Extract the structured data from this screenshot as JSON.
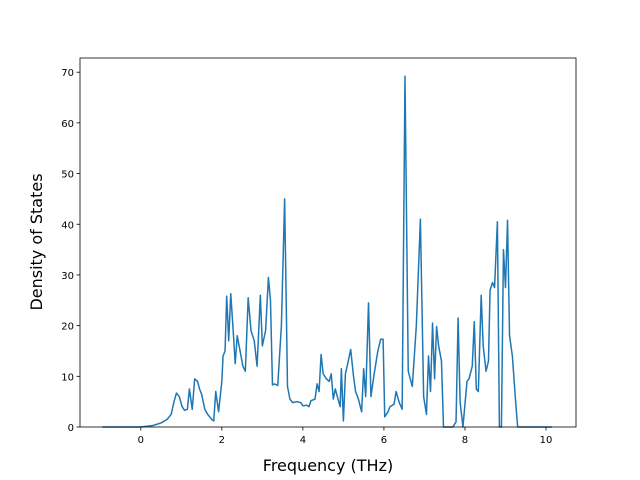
{
  "chart_data": {
    "type": "line",
    "xlabel": "Frequency (THz)",
    "ylabel": "Density of States",
    "x": [
      -0.95,
      0,
      0.3,
      0.5,
      0.65,
      0.75,
      0.82,
      0.88,
      0.95,
      1.02,
      1.08,
      1.15,
      1.2,
      1.27,
      1.33,
      1.4,
      1.45,
      1.5,
      1.58,
      1.65,
      1.75,
      1.8,
      1.85,
      1.92,
      2.0,
      2.03,
      2.08,
      2.12,
      2.17,
      2.22,
      2.28,
      2.33,
      2.38,
      2.45,
      2.52,
      2.58,
      2.65,
      2.72,
      2.8,
      2.87,
      2.95,
      3.0,
      3.08,
      3.15,
      3.2,
      3.25,
      3.3,
      3.38,
      3.47,
      3.55,
      3.62,
      3.68,
      3.75,
      3.85,
      3.95,
      4.0,
      4.1,
      4.15,
      4.2,
      4.3,
      4.35,
      4.4,
      4.45,
      4.5,
      4.58,
      4.65,
      4.7,
      4.75,
      4.8,
      4.85,
      4.92,
      4.95,
      5.0,
      5.05,
      5.12,
      5.18,
      5.25,
      5.3,
      5.37,
      5.45,
      5.5,
      5.55,
      5.62,
      5.68,
      5.75,
      5.85,
      5.92,
      5.98,
      6.02,
      6.1,
      6.15,
      6.25,
      6.3,
      6.38,
      6.45,
      6.52,
      6.6,
      6.7,
      6.8,
      6.9,
      6.98,
      7.05,
      7.1,
      7.15,
      7.2,
      7.25,
      7.3,
      7.35,
      7.42,
      7.47,
      7.55,
      7.7,
      7.78,
      7.83,
      7.88,
      7.95,
      8.05,
      8.1,
      8.18,
      8.23,
      8.28,
      8.33,
      8.4,
      8.45,
      8.52,
      8.58,
      8.62,
      8.68,
      8.73,
      8.8,
      8.85,
      8.9,
      8.95,
      9.0,
      9.05,
      9.1,
      9.17,
      9.25,
      9.3,
      9.5,
      10.15
    ],
    "series": [
      {
        "color": "#1f77b4",
        "values": [
          0,
          0,
          0.3,
          0.8,
          1.5,
          2.5,
          5,
          6.7,
          6,
          4,
          3.3,
          3.5,
          7.5,
          3.5,
          9.5,
          9,
          7.5,
          6.5,
          3.5,
          2.5,
          1.5,
          1.2,
          7,
          3,
          9,
          14,
          15,
          25.8,
          17,
          26.3,
          19,
          12.5,
          18,
          15,
          12,
          11,
          25.5,
          19,
          17,
          12,
          26,
          16,
          19,
          29.5,
          25,
          8.3,
          8.5,
          8.2,
          20,
          45,
          8,
          5.5,
          4.8,
          5,
          4.8,
          4.2,
          4.3,
          4,
          5.2,
          5.5,
          8.5,
          7,
          14.3,
          10.5,
          9.5,
          9,
          10.5,
          5.5,
          7.5,
          6,
          4,
          11.5,
          1.2,
          10.5,
          13,
          15.3,
          10,
          7,
          5.5,
          3,
          11.5,
          6,
          24.5,
          6,
          10,
          15,
          17.3,
          17.3,
          2,
          3,
          4,
          4.5,
          7,
          4.8,
          3.5,
          69.2,
          11,
          8,
          20,
          41,
          6,
          2.5,
          14,
          7,
          20.5,
          9.5,
          19.8,
          16,
          13,
          0,
          0,
          0,
          1,
          21.5,
          5,
          0,
          9,
          9.5,
          12,
          20.8,
          7.5,
          7,
          26,
          16,
          11,
          13,
          27,
          28.5,
          27.5,
          40.5,
          0,
          0,
          35,
          27.5,
          40.8,
          18,
          14,
          5,
          0,
          0,
          0
        ]
      }
    ],
    "xlim": [
      -1.5,
      10.74
    ],
    "ylim": [
      0,
      72.8
    ],
    "xticks": [
      0,
      2,
      4,
      6,
      8,
      10
    ],
    "yticks": [
      0,
      10,
      20,
      30,
      40,
      50,
      60,
      70
    ]
  }
}
